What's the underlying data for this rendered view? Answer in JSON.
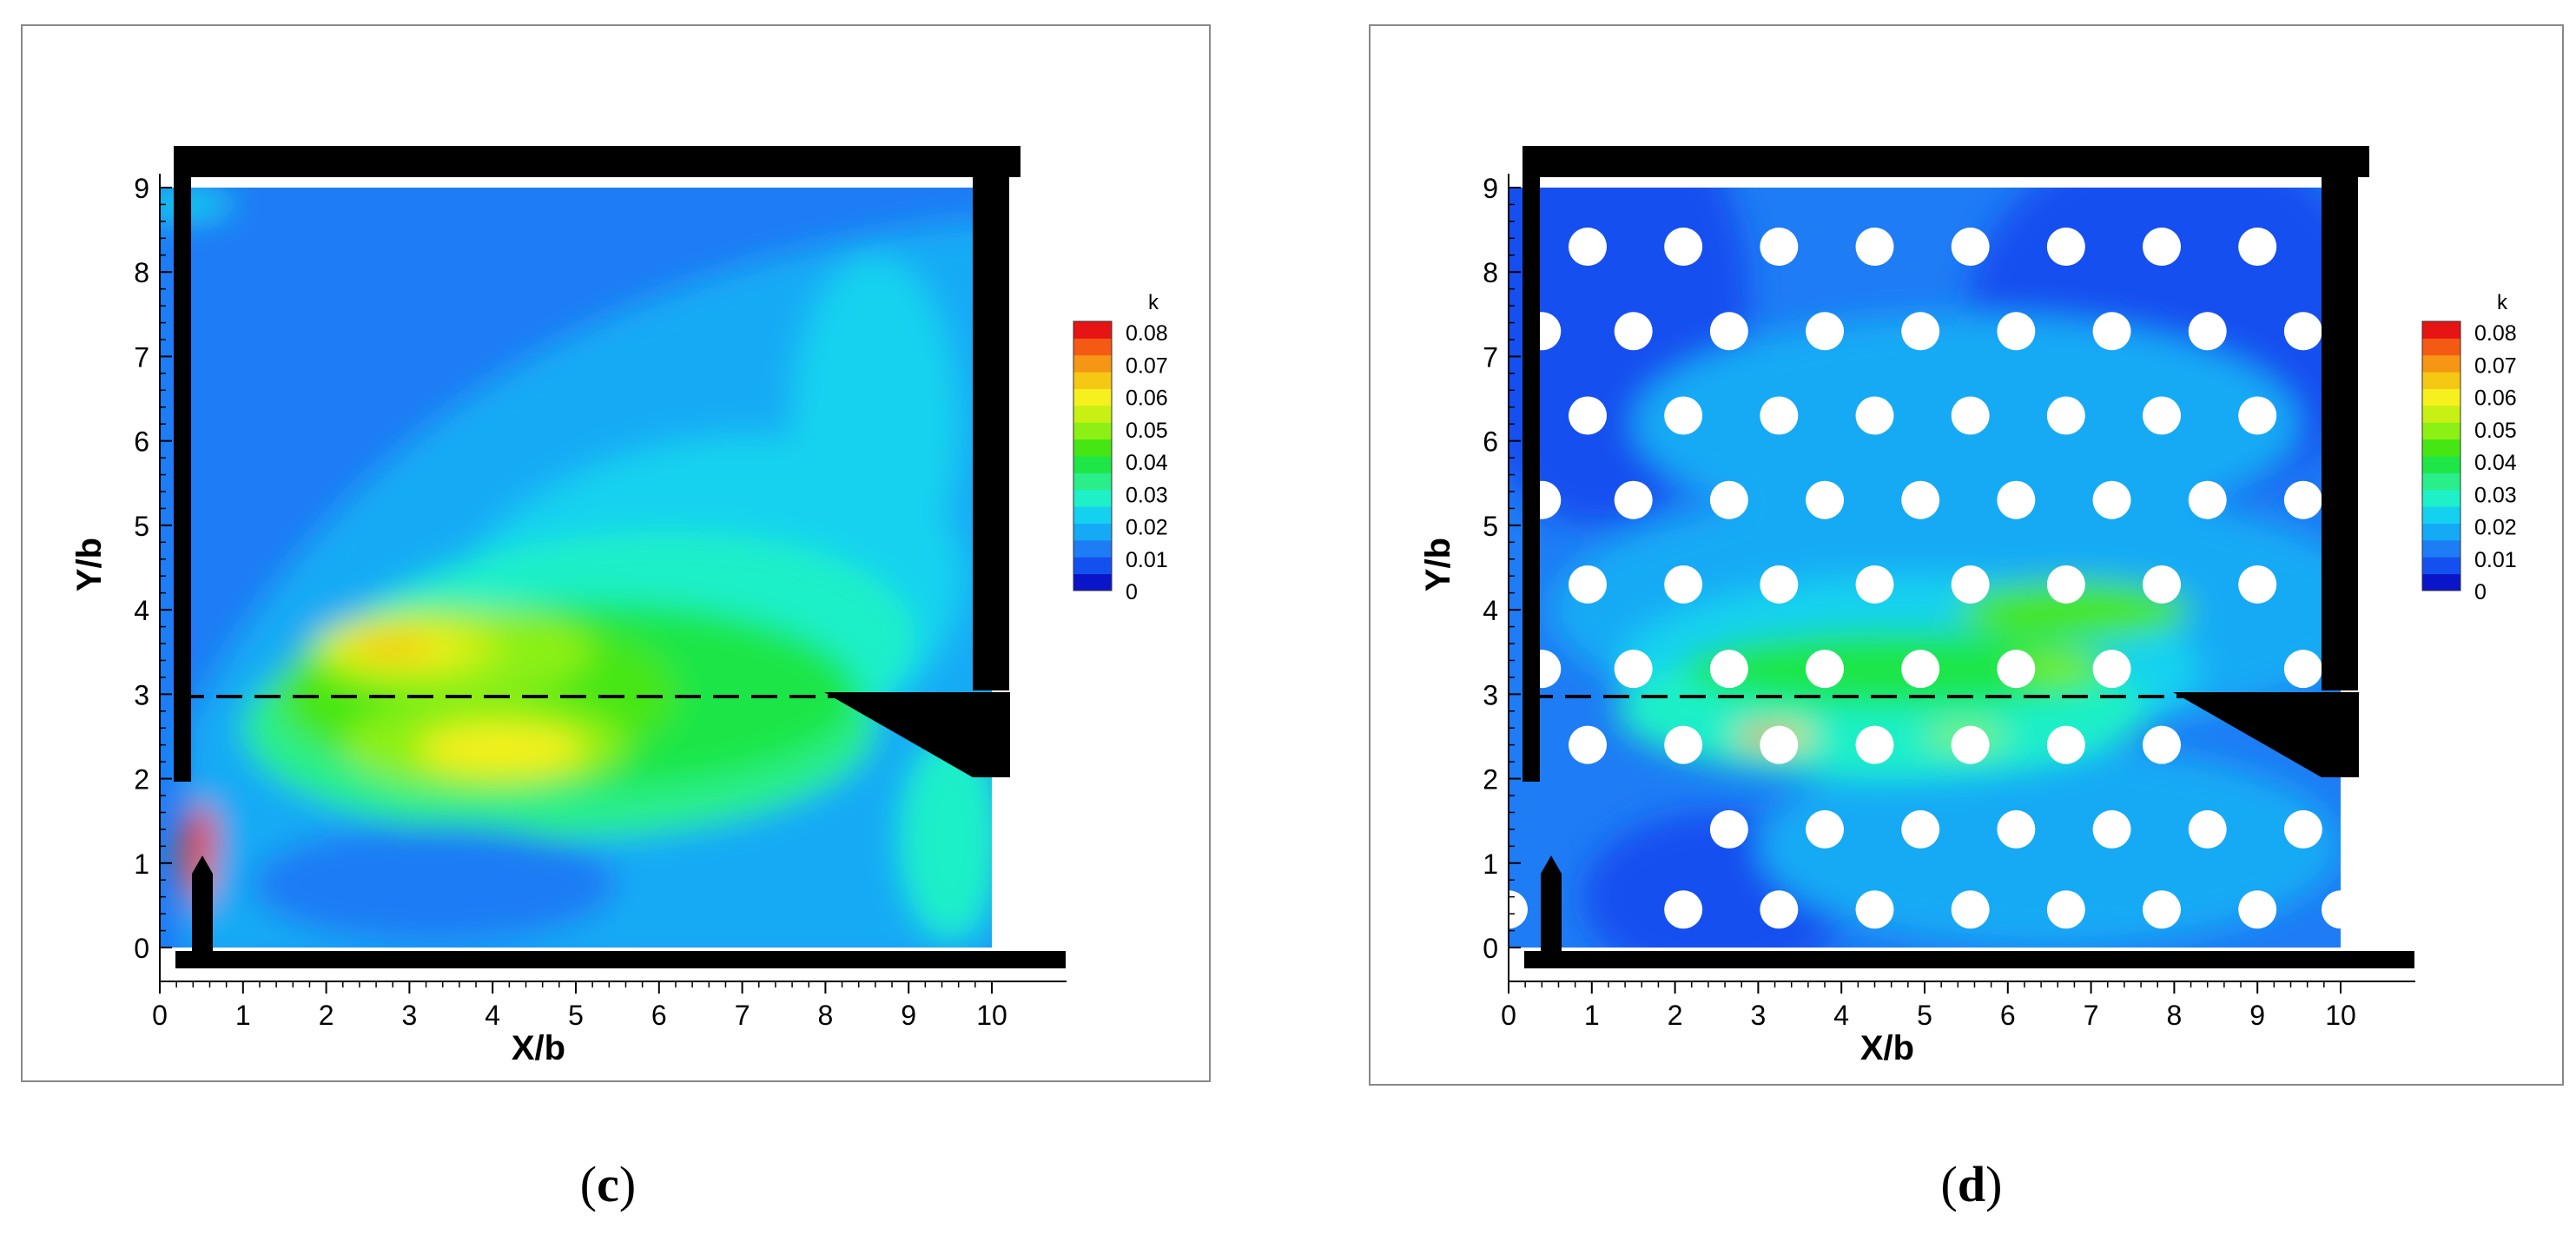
{
  "panels": [
    {
      "caption_letter": "c",
      "chart_data": {
        "type": "heatmap",
        "xlabel": "X/b",
        "ylabel": "Y/b",
        "xlim": [
          0,
          10
        ],
        "ylim": [
          0,
          9
        ],
        "x_ticks": [
          "0",
          "1",
          "2",
          "3",
          "4",
          "5",
          "6",
          "7",
          "8",
          "9",
          "10"
        ],
        "y_ticks": [
          "0",
          "1",
          "2",
          "3",
          "4",
          "5",
          "6",
          "7",
          "8",
          "9"
        ],
        "colorbar": {
          "title": "k",
          "levels": [
            "0.08",
            "0.07",
            "0.06",
            "0.05",
            "0.04",
            "0.03",
            "0.02",
            "0.01",
            "0"
          ],
          "colors": [
            "#0a14c8",
            "#1450f0",
            "#1e7cf5",
            "#14aaf5",
            "#14d2ef",
            "#1ef0c8",
            "#2aee8a",
            "#1ee646",
            "#46e614",
            "#8cf014",
            "#c8f014",
            "#f5f01e",
            "#f5c814",
            "#f59614",
            "#f55a14",
            "#e61414"
          ]
        },
        "annotations": [
          "dashed line at Y/b = 3"
        ],
        "obstacles": "none",
        "regions": [
          {
            "kind": "high-k core",
            "x": 2.9,
            "y": 3.5,
            "k": 0.065
          },
          {
            "kind": "high-k core",
            "x": 3.9,
            "y": 2.4,
            "k": 0.06
          },
          {
            "kind": "jet edge peak",
            "x": 0.4,
            "y": 1.1,
            "k": 0.08
          }
        ]
      }
    },
    {
      "caption_letter": "d",
      "chart_data": {
        "type": "heatmap",
        "xlabel": "X/b",
        "ylabel": "Y/b",
        "xlim": [
          0,
          10
        ],
        "ylim": [
          0,
          9
        ],
        "x_ticks": [
          "0",
          "1",
          "2",
          "3",
          "4",
          "5",
          "6",
          "7",
          "8",
          "9",
          "10"
        ],
        "y_ticks": [
          "0",
          "1",
          "2",
          "3",
          "4",
          "5",
          "6",
          "7",
          "8",
          "9"
        ],
        "colorbar": {
          "title": "k",
          "levels": [
            "0.08",
            "0.07",
            "0.06",
            "0.05",
            "0.04",
            "0.03",
            "0.02",
            "0.01",
            "0"
          ],
          "colors": [
            "#0a14c8",
            "#1450f0",
            "#1e7cf5",
            "#14aaf5",
            "#14d2ef",
            "#1ef0c8",
            "#2aee8a",
            "#1ee646",
            "#46e614",
            "#8cf014",
            "#c8f014",
            "#f5f01e",
            "#f5c814",
            "#f59614",
            "#f55a14",
            "#e61414"
          ]
        },
        "annotations": [
          "dashed line at Y/b = 3"
        ],
        "obstacles": "staggered circular cylinders",
        "cylinder_rows": [
          {
            "y": 8.3,
            "x": [
              0.95,
              2.1,
              3.25,
              4.4,
              5.55,
              6.7,
              7.85,
              9.0
            ]
          },
          {
            "y": 7.3,
            "x": [
              0.4,
              1.5,
              2.65,
              3.8,
              4.95,
              6.1,
              7.25,
              8.4,
              9.55
            ]
          },
          {
            "y": 6.3,
            "x": [
              0.95,
              2.1,
              3.25,
              4.4,
              5.55,
              6.7,
              7.85,
              9.0
            ]
          },
          {
            "y": 5.3,
            "x": [
              0.4,
              1.5,
              2.65,
              3.8,
              4.95,
              6.1,
              7.25,
              8.4,
              9.55
            ]
          },
          {
            "y": 4.3,
            "x": [
              0.95,
              2.1,
              3.25,
              4.4,
              5.55,
              6.7,
              7.85,
              9.0
            ]
          },
          {
            "y": 3.3,
            "x": [
              0.4,
              1.5,
              2.65,
              3.8,
              4.95,
              6.1,
              7.25,
              9.55
            ]
          },
          {
            "y": 2.4,
            "x": [
              0.95,
              2.1,
              3.25,
              4.4,
              5.55,
              6.7,
              7.85
            ]
          },
          {
            "y": 1.4,
            "x": [
              2.65,
              3.8,
              4.95,
              6.1,
              7.25,
              8.4,
              9.55
            ]
          },
          {
            "y": 0.45,
            "x": [
              0.0,
              2.1,
              3.25,
              4.4,
              5.55,
              6.7,
              7.85,
              9.0,
              10.0
            ]
          }
        ]
      }
    }
  ]
}
